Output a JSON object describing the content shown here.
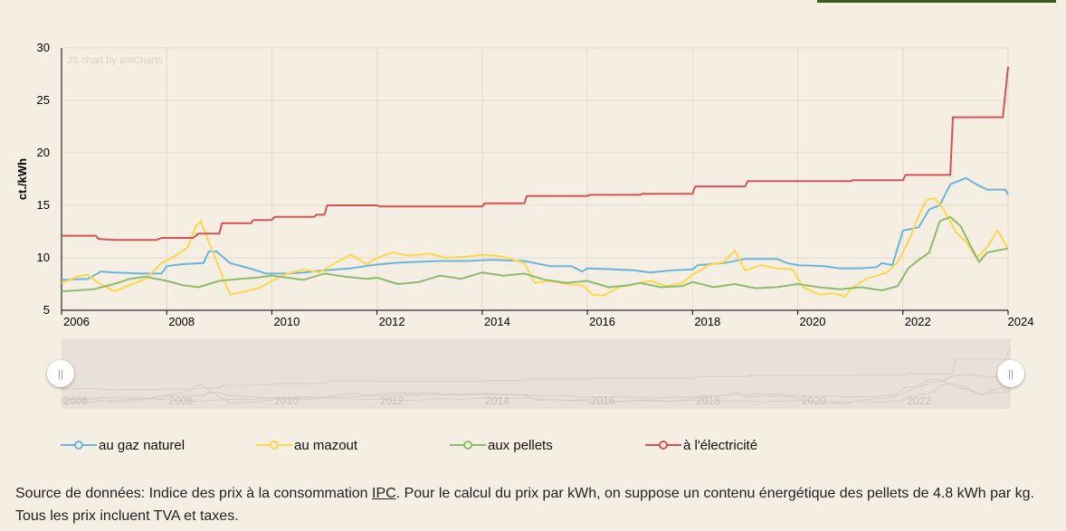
{
  "watermark": "JS chart by amCharts",
  "scrollbar": {
    "left_handle": "||",
    "right_handle": "||",
    "labels": [
      "2006",
      "2008",
      "2010",
      "2012",
      "2014",
      "2016",
      "2018",
      "2020",
      "2022"
    ]
  },
  "legend": [
    {
      "label": "au gaz naturel",
      "color": "#6ab5dc"
    },
    {
      "label": "au mazout",
      "color": "#ffd84a"
    },
    {
      "label": "aux pellets",
      "color": "#8ebb6e"
    },
    {
      "label": "à l'électricité",
      "color": "#d65355"
    }
  ],
  "source": {
    "prefix": "Source de données: Indice des prix à la consommation ",
    "link": "IPC",
    "suffix": ". Pour le calcul du prix par kWh, on suppose un contenu énergétique des pellets de 4.8 kWh par kg. Tous les prix incluent TVA et taxes."
  },
  "chart_data": {
    "type": "line",
    "title": "",
    "xlabel": "",
    "ylabel": "ct./kWh",
    "ylim": [
      5,
      30
    ],
    "xlim": [
      2006,
      2024
    ],
    "yticks": [
      "5",
      "10",
      "15",
      "20",
      "25",
      "30"
    ],
    "xticks": [
      "2006",
      "2008",
      "2010",
      "2012",
      "2014",
      "2016",
      "2018",
      "2020",
      "2022",
      "2024"
    ],
    "grid": true,
    "legend_position": "bottom",
    "series": [
      {
        "name": "au gaz naturel",
        "color": "#6ab5dc",
        "points": [
          [
            2006.0,
            7.9
          ],
          [
            2006.5,
            8.0
          ],
          [
            2006.75,
            8.7
          ],
          [
            2007.0,
            8.6
          ],
          [
            2007.5,
            8.5
          ],
          [
            2007.9,
            8.5
          ],
          [
            2008.0,
            9.2
          ],
          [
            2008.3,
            9.4
          ],
          [
            2008.7,
            9.5
          ],
          [
            2008.8,
            10.6
          ],
          [
            2008.95,
            10.6
          ],
          [
            2009.2,
            9.5
          ],
          [
            2009.5,
            9.1
          ],
          [
            2009.9,
            8.5
          ],
          [
            2010.3,
            8.5
          ],
          [
            2010.6,
            8.6
          ],
          [
            2011.0,
            8.8
          ],
          [
            2011.5,
            9.0
          ],
          [
            2011.9,
            9.3
          ],
          [
            2012.3,
            9.5
          ],
          [
            2012.7,
            9.6
          ],
          [
            2013.2,
            9.7
          ],
          [
            2013.7,
            9.7
          ],
          [
            2014.2,
            9.8
          ],
          [
            2014.8,
            9.7
          ],
          [
            2015.3,
            9.2
          ],
          [
            2015.7,
            9.2
          ],
          [
            2015.9,
            8.7
          ],
          [
            2016.0,
            9.0
          ],
          [
            2016.5,
            8.9
          ],
          [
            2016.9,
            8.8
          ],
          [
            2017.2,
            8.6
          ],
          [
            2017.6,
            8.8
          ],
          [
            2018.0,
            8.9
          ],
          [
            2018.1,
            9.3
          ],
          [
            2018.6,
            9.5
          ],
          [
            2019.0,
            9.9
          ],
          [
            2019.6,
            9.9
          ],
          [
            2019.8,
            9.5
          ],
          [
            2020.0,
            9.3
          ],
          [
            2020.5,
            9.2
          ],
          [
            2020.8,
            9.0
          ],
          [
            2021.2,
            9.0
          ],
          [
            2021.5,
            9.1
          ],
          [
            2021.6,
            9.5
          ],
          [
            2021.8,
            9.3
          ],
          [
            2022.0,
            12.6
          ],
          [
            2022.3,
            12.9
          ],
          [
            2022.5,
            14.6
          ],
          [
            2022.7,
            15.0
          ],
          [
            2022.9,
            17.0
          ],
          [
            2023.2,
            17.6
          ],
          [
            2023.4,
            17.0
          ],
          [
            2023.6,
            16.5
          ],
          [
            2023.8,
            16.5
          ],
          [
            2023.95,
            16.5
          ],
          [
            2024.0,
            16.0
          ]
        ]
      },
      {
        "name": "au mazout",
        "color": "#ffd84a",
        "points": [
          [
            2006.0,
            7.6
          ],
          [
            2006.3,
            8.2
          ],
          [
            2006.5,
            8.4
          ],
          [
            2006.7,
            7.6
          ],
          [
            2007.0,
            6.8
          ],
          [
            2007.3,
            7.4
          ],
          [
            2007.6,
            8.0
          ],
          [
            2007.9,
            9.5
          ],
          [
            2008.1,
            10.0
          ],
          [
            2008.4,
            11.0
          ],
          [
            2008.55,
            13.0
          ],
          [
            2008.65,
            13.5
          ],
          [
            2008.8,
            11.5
          ],
          [
            2009.0,
            9.0
          ],
          [
            2009.2,
            6.5
          ],
          [
            2009.5,
            6.8
          ],
          [
            2009.8,
            7.2
          ],
          [
            2010.0,
            7.8
          ],
          [
            2010.3,
            8.5
          ],
          [
            2010.6,
            8.9
          ],
          [
            2010.9,
            8.6
          ],
          [
            2011.2,
            9.5
          ],
          [
            2011.5,
            10.3
          ],
          [
            2011.8,
            9.4
          ],
          [
            2012.0,
            10.0
          ],
          [
            2012.3,
            10.5
          ],
          [
            2012.6,
            10.2
          ],
          [
            2013.0,
            10.4
          ],
          [
            2013.3,
            10.0
          ],
          [
            2013.7,
            10.1
          ],
          [
            2014.0,
            10.3
          ],
          [
            2014.4,
            10.1
          ],
          [
            2014.8,
            9.5
          ],
          [
            2015.0,
            7.6
          ],
          [
            2015.3,
            7.8
          ],
          [
            2015.6,
            7.5
          ],
          [
            2015.9,
            7.4
          ],
          [
            2016.1,
            6.5
          ],
          [
            2016.3,
            6.4
          ],
          [
            2016.6,
            7.2
          ],
          [
            2016.9,
            7.5
          ],
          [
            2017.2,
            7.8
          ],
          [
            2017.5,
            7.3
          ],
          [
            2017.8,
            7.6
          ],
          [
            2018.0,
            8.4
          ],
          [
            2018.3,
            9.3
          ],
          [
            2018.6,
            9.6
          ],
          [
            2018.8,
            10.7
          ],
          [
            2019.0,
            8.8
          ],
          [
            2019.3,
            9.3
          ],
          [
            2019.6,
            9.0
          ],
          [
            2019.9,
            8.9
          ],
          [
            2020.1,
            7.2
          ],
          [
            2020.4,
            6.5
          ],
          [
            2020.7,
            6.6
          ],
          [
            2020.9,
            6.3
          ],
          [
            2021.0,
            7.0
          ],
          [
            2021.3,
            8.0
          ],
          [
            2021.7,
            8.6
          ],
          [
            2021.9,
            9.6
          ],
          [
            2022.1,
            11.5
          ],
          [
            2022.3,
            14.0
          ],
          [
            2022.45,
            15.5
          ],
          [
            2022.6,
            15.7
          ],
          [
            2022.75,
            14.8
          ],
          [
            2023.0,
            12.5
          ],
          [
            2023.2,
            11.5
          ],
          [
            2023.4,
            10.0
          ],
          [
            2023.6,
            11.0
          ],
          [
            2023.8,
            12.6
          ],
          [
            2024.0,
            10.8
          ]
        ]
      },
      {
        "name": "aux pellets",
        "color": "#8ebb6e",
        "points": [
          [
            2006.0,
            6.8
          ],
          [
            2006.3,
            6.9
          ],
          [
            2006.6,
            7.0
          ],
          [
            2007.0,
            7.5
          ],
          [
            2007.3,
            8.0
          ],
          [
            2007.6,
            8.2
          ],
          [
            2008.0,
            7.8
          ],
          [
            2008.3,
            7.4
          ],
          [
            2008.6,
            7.2
          ],
          [
            2009.0,
            7.8
          ],
          [
            2009.4,
            8.0
          ],
          [
            2009.7,
            8.1
          ],
          [
            2010.0,
            8.3
          ],
          [
            2010.3,
            8.1
          ],
          [
            2010.6,
            7.9
          ],
          [
            2011.0,
            8.5
          ],
          [
            2011.4,
            8.2
          ],
          [
            2011.8,
            8.0
          ],
          [
            2012.0,
            8.1
          ],
          [
            2012.4,
            7.5
          ],
          [
            2012.8,
            7.7
          ],
          [
            2013.2,
            8.3
          ],
          [
            2013.6,
            8.0
          ],
          [
            2014.0,
            8.6
          ],
          [
            2014.4,
            8.3
          ],
          [
            2014.8,
            8.5
          ],
          [
            2015.2,
            7.9
          ],
          [
            2015.6,
            7.6
          ],
          [
            2016.0,
            7.8
          ],
          [
            2016.4,
            7.2
          ],
          [
            2016.8,
            7.4
          ],
          [
            2017.0,
            7.6
          ],
          [
            2017.4,
            7.2
          ],
          [
            2017.8,
            7.3
          ],
          [
            2018.0,
            7.7
          ],
          [
            2018.4,
            7.2
          ],
          [
            2018.8,
            7.5
          ],
          [
            2019.2,
            7.1
          ],
          [
            2019.6,
            7.2
          ],
          [
            2020.0,
            7.5
          ],
          [
            2020.4,
            7.2
          ],
          [
            2020.8,
            7.0
          ],
          [
            2021.2,
            7.2
          ],
          [
            2021.6,
            6.9
          ],
          [
            2021.9,
            7.3
          ],
          [
            2022.1,
            9.0
          ],
          [
            2022.3,
            9.8
          ],
          [
            2022.5,
            10.5
          ],
          [
            2022.7,
            13.5
          ],
          [
            2022.9,
            13.9
          ],
          [
            2023.1,
            13.0
          ],
          [
            2023.3,
            11.0
          ],
          [
            2023.45,
            9.6
          ],
          [
            2023.6,
            10.5
          ],
          [
            2023.8,
            10.7
          ],
          [
            2024.0,
            10.9
          ]
        ]
      },
      {
        "name": "à l'électricité",
        "color": "#d65355",
        "points": [
          [
            2006.0,
            12.1
          ],
          [
            2006.65,
            12.1
          ],
          [
            2006.7,
            11.8
          ],
          [
            2007.0,
            11.7
          ],
          [
            2007.5,
            11.7
          ],
          [
            2007.8,
            11.7
          ],
          [
            2007.9,
            11.9
          ],
          [
            2008.5,
            11.9
          ],
          [
            2008.6,
            12.3
          ],
          [
            2009.0,
            12.3
          ],
          [
            2009.05,
            13.3
          ],
          [
            2009.6,
            13.3
          ],
          [
            2009.65,
            13.6
          ],
          [
            2010.0,
            13.6
          ],
          [
            2010.05,
            13.9
          ],
          [
            2010.8,
            13.9
          ],
          [
            2010.85,
            14.1
          ],
          [
            2011.0,
            14.1
          ],
          [
            2011.05,
            15.0
          ],
          [
            2012.0,
            15.0
          ],
          [
            2012.05,
            14.9
          ],
          [
            2014.0,
            14.9
          ],
          [
            2014.05,
            15.2
          ],
          [
            2014.8,
            15.2
          ],
          [
            2014.85,
            15.9
          ],
          [
            2016.0,
            15.9
          ],
          [
            2016.05,
            16.0
          ],
          [
            2017.0,
            16.0
          ],
          [
            2017.05,
            16.1
          ],
          [
            2018.0,
            16.1
          ],
          [
            2018.05,
            16.8
          ],
          [
            2019.0,
            16.8
          ],
          [
            2019.05,
            17.3
          ],
          [
            2021.0,
            17.3
          ],
          [
            2021.05,
            17.4
          ],
          [
            2022.0,
            17.4
          ],
          [
            2022.05,
            17.9
          ],
          [
            2022.9,
            17.9
          ],
          [
            2022.95,
            23.4
          ],
          [
            2023.9,
            23.4
          ],
          [
            2024.0,
            28.2
          ]
        ]
      }
    ]
  }
}
